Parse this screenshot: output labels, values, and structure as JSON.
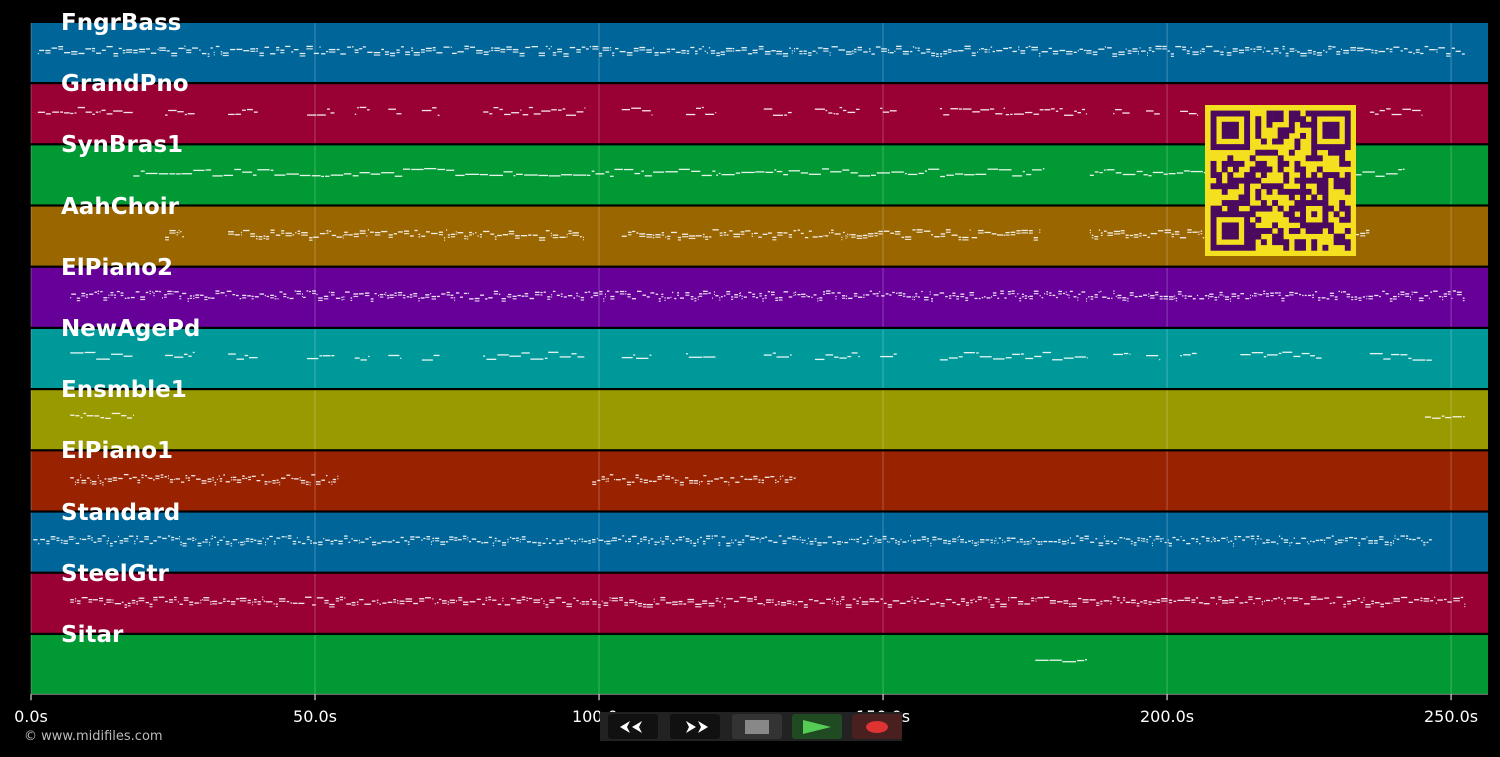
{
  "player": {
    "tracks": [
      {
        "name": "FngrBass",
        "color": "#006699",
        "ranges": [
          [
            1.2,
            252.5
          ]
        ],
        "density": 3
      },
      {
        "name": "GrandPno",
        "color": "#990033",
        "ranges": [
          [
            1.2,
            6.9
          ],
          [
            6.9,
            18
          ],
          [
            23.6,
            28.9
          ],
          [
            34.7,
            40
          ],
          [
            48.6,
            53.5
          ],
          [
            57,
            59.7
          ],
          [
            62.9,
            65.3
          ],
          [
            68.8,
            72
          ],
          [
            79.6,
            97.5
          ],
          [
            104,
            109.3
          ],
          [
            115.3,
            120.6
          ],
          [
            129,
            134
          ],
          [
            138,
            146
          ],
          [
            149.5,
            152.5
          ],
          [
            160,
            186
          ],
          [
            190.5,
            193.5
          ],
          [
            196.3,
            198.8
          ],
          [
            202.3,
            205.3
          ],
          [
            212.9,
            227.3
          ],
          [
            235.7,
            245
          ]
        ],
        "density": 2
      },
      {
        "name": "SynBras1",
        "color": "#009933",
        "ranges": [
          [
            18,
            178.5
          ],
          [
            186.4,
            241.9
          ]
        ],
        "density": 1.5
      },
      {
        "name": "AahChoir",
        "color": "#996600",
        "ranges": [
          [
            23.6,
            27
          ],
          [
            34.7,
            97.2
          ],
          [
            104,
            177.6
          ],
          [
            186.4,
            235.7
          ]
        ],
        "density": 3
      },
      {
        "name": "ElPiano2",
        "color": "#660099",
        "ranges": [
          [
            6.9,
            252.5
          ]
        ],
        "density": 4
      },
      {
        "name": "NewAgePd",
        "color": "#009999",
        "ranges": [
          [
            6.9,
            18
          ],
          [
            23.6,
            28.9
          ],
          [
            34.7,
            40
          ],
          [
            48.6,
            53.5
          ],
          [
            57,
            59.7
          ],
          [
            62.9,
            65.3
          ],
          [
            68.8,
            72
          ],
          [
            79.6,
            97.5
          ],
          [
            104,
            109.3
          ],
          [
            115.3,
            120.6
          ],
          [
            129,
            134
          ],
          [
            138,
            146
          ],
          [
            149.5,
            152.5
          ],
          [
            160,
            186
          ],
          [
            190.5,
            193.5
          ],
          [
            196.3,
            198.8
          ],
          [
            202.3,
            205.3
          ],
          [
            212.9,
            227.3
          ],
          [
            235.7,
            246.7
          ]
        ],
        "density": 1.5
      },
      {
        "name": "Ensmble1",
        "color": "#999900",
        "ranges": [
          [
            6.9,
            18
          ],
          [
            245.4,
            252.5
          ]
        ],
        "density": 2
      },
      {
        "name": "ElPiano1",
        "color": "#992200",
        "ranges": [
          [
            6.9,
            54
          ],
          [
            98.8,
            134.7
          ]
        ],
        "density": 4
      },
      {
        "name": "Standard",
        "color": "#006699",
        "ranges": [
          [
            0.4,
            246.7
          ]
        ],
        "density": 4
      },
      {
        "name": "SteelGtr",
        "color": "#990033",
        "ranges": [
          [
            6.9,
            252.5
          ]
        ],
        "density": 3
      },
      {
        "name": "Sitar",
        "color": "#009933",
        "ranges": [
          [
            176.8,
            186
          ]
        ],
        "density": 1.5
      }
    ],
    "time_axis": {
      "min": 0,
      "max": 256.5,
      "ticks": [
        0,
        50,
        100,
        150,
        200,
        250
      ],
      "tick_labels": [
        "0.0s",
        "50.0s",
        "100.0s",
        "150.0s",
        "200.0s",
        "250.0s"
      ]
    },
    "controls": {
      "rewind_icon": "rewind-icon",
      "fast_forward_icon": "fast-forward-icon",
      "stop_icon": "stop-icon",
      "play_icon": "play-icon",
      "record_icon": "record-icon"
    },
    "copyright": "© www.midifiles.com"
  }
}
